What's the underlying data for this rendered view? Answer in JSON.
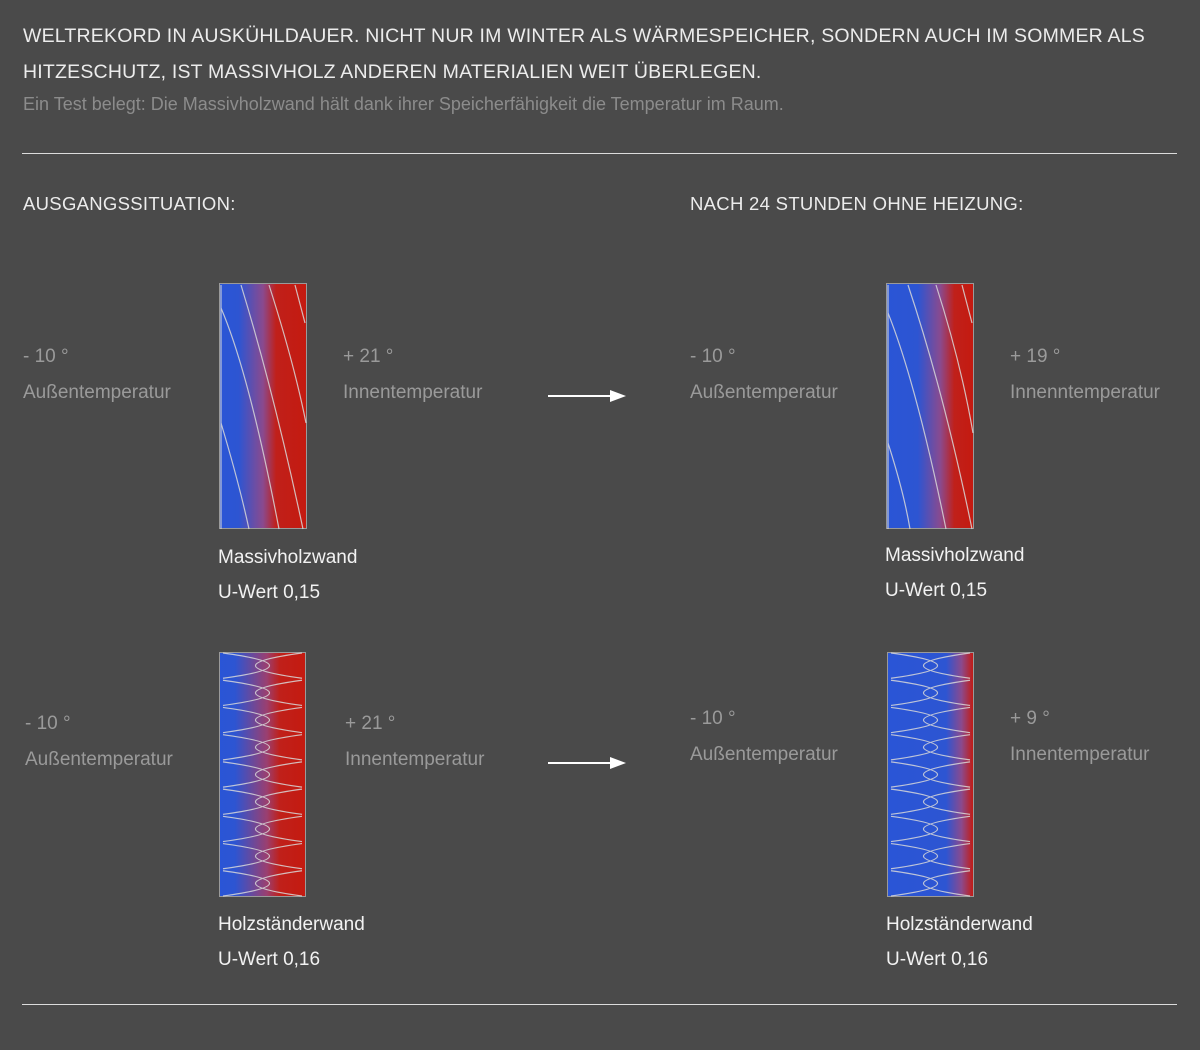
{
  "header": {
    "headline": "WELTREKORD IN AUSKÜHLDAUER. NICHT NUR IM WINTER ALS WÄRMESPEICHER, SONDERN AUCH IM SOMMER ALS HITZESCHUTZ, IST MASSIVHOLZ ANDEREN MATERIALIEN WEIT ÜBERLEGEN.",
    "subline": "Ein Test belegt: Die Massivholzwand hält dank ihrer Speicherfähigkeit die Temperatur im Raum."
  },
  "sections": {
    "left": "AUSGANGSSITUATION:",
    "right": "NACH 24 STUNDEN OHNE HEIZUNG:"
  },
  "panels": {
    "massiv_before": {
      "outside_value": "- 10 °",
      "outside_label": "Außentemperatur",
      "inside_value": "+ 21 °",
      "inside_label": "Innentemperatur",
      "wall_name": "Massivholzwand",
      "u_value": "U-Wert 0,15"
    },
    "massiv_after": {
      "outside_value": "- 10 °",
      "outside_label": "Außentemperatur",
      "inside_value": "+ 19 °",
      "inside_label": "Innenntemperatur",
      "wall_name": "Massivholzwand",
      "u_value": "U-Wert 0,15"
    },
    "staender_before": {
      "outside_value": "- 10 °",
      "outside_label": "Außentemperatur",
      "inside_value": "+ 21 °",
      "inside_label": "Innentemperatur",
      "wall_name": "Holzständerwand",
      "u_value": "U-Wert 0,16"
    },
    "staender_after": {
      "outside_value": "- 10 °",
      "outside_label": "Außentemperatur",
      "inside_value": "+ 9 °",
      "inside_label": "Innentemperatur",
      "wall_name": "Holzständerwand",
      "u_value": "U-Wert 0,16"
    }
  },
  "colors": {
    "background": "#4a4a4a",
    "cold": "#2f55d4",
    "warm": "#c41a10",
    "text_light": "#ececec",
    "text_muted": "#9a9a9a"
  }
}
